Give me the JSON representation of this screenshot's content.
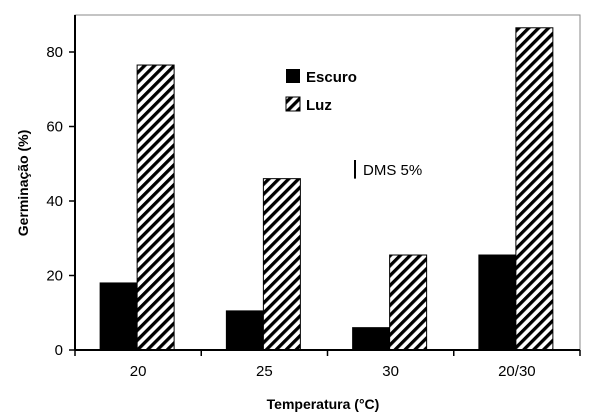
{
  "chart_data": {
    "type": "bar",
    "categories": [
      "20",
      "25",
      "30",
      "20/30"
    ],
    "series": [
      {
        "name": "Escuro",
        "values": [
          18,
          10.5,
          6,
          25.5
        ],
        "fill": "#000000"
      },
      {
        "name": "Luz",
        "values": [
          76.5,
          46,
          25.5,
          86.5
        ],
        "fill": "hatch"
      }
    ],
    "xlabel": "Temperatura (°C)",
    "ylabel": "Germinação (%)",
    "ylim": [
      0,
      90
    ],
    "yticks": [
      0,
      20,
      40,
      60,
      80
    ],
    "grid": false,
    "legend_position": "top-center",
    "annotation": {
      "text": "DMS 5%",
      "value": 5
    }
  }
}
